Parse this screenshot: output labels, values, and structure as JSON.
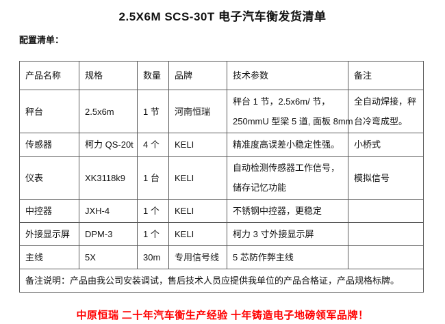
{
  "page": {
    "title": "2.5X6M SCS-30T 电子汽车衡发货清单",
    "subtitle": "配置清单：",
    "footer_slogan": "中原恒瑞 二十年汽车衡生产经验 十年铸造电子地磅领军品牌！",
    "footer_color": "#ff0000",
    "text_color": "#111111",
    "border_color": "#595959"
  },
  "table": {
    "headers": [
      "产品名称",
      "规格",
      "数量",
      "品牌",
      "技术参数",
      "备注"
    ],
    "rows": [
      {
        "product": "秤台",
        "spec": "2.5x6m",
        "qty": "1 节",
        "brand": "河南恒瑞",
        "params": [
          "秤台 1 节，2.5x6m/ 节，",
          "250mmU 型梁 5 道, 面板 8mm"
        ],
        "note": [
          "全自动焊接，秤",
          "台冷弯成型。"
        ]
      },
      {
        "product": "传感器",
        "spec": "柯力 QS-20t",
        "qty": "4 个",
        "brand": "KELI",
        "params": [
          "精准度高误差小稳定性强。"
        ],
        "note": [
          "小桥式"
        ]
      },
      {
        "product": "仪表",
        "spec": "XK3118k9",
        "qty": "1 台",
        "brand": "KELI",
        "params": [
          "自动检测传感器工作信号，",
          "储存记忆功能"
        ],
        "note": [
          "模拟信号"
        ]
      },
      {
        "product": "中控器",
        "spec": "JXH-4",
        "qty": "1 个",
        "brand": "KELI",
        "params": [
          "不锈钢中控器，更稳定"
        ],
        "note": []
      },
      {
        "product": "外接显示屏",
        "spec": "DPM-3",
        "qty": "1 个",
        "brand": "KELI",
        "params": [
          "柯力 3 寸外接显示屏"
        ],
        "note": []
      },
      {
        "product": "主线",
        "spec": "5X",
        "qty": "30m",
        "brand": "专用信号线",
        "params": [
          "5 芯防作弊主线"
        ],
        "note": []
      }
    ],
    "footnote": "备注说明：产品由我公司安装调试，售后技术人员应提供我单位的产品合格证，产品规格标牌。"
  }
}
